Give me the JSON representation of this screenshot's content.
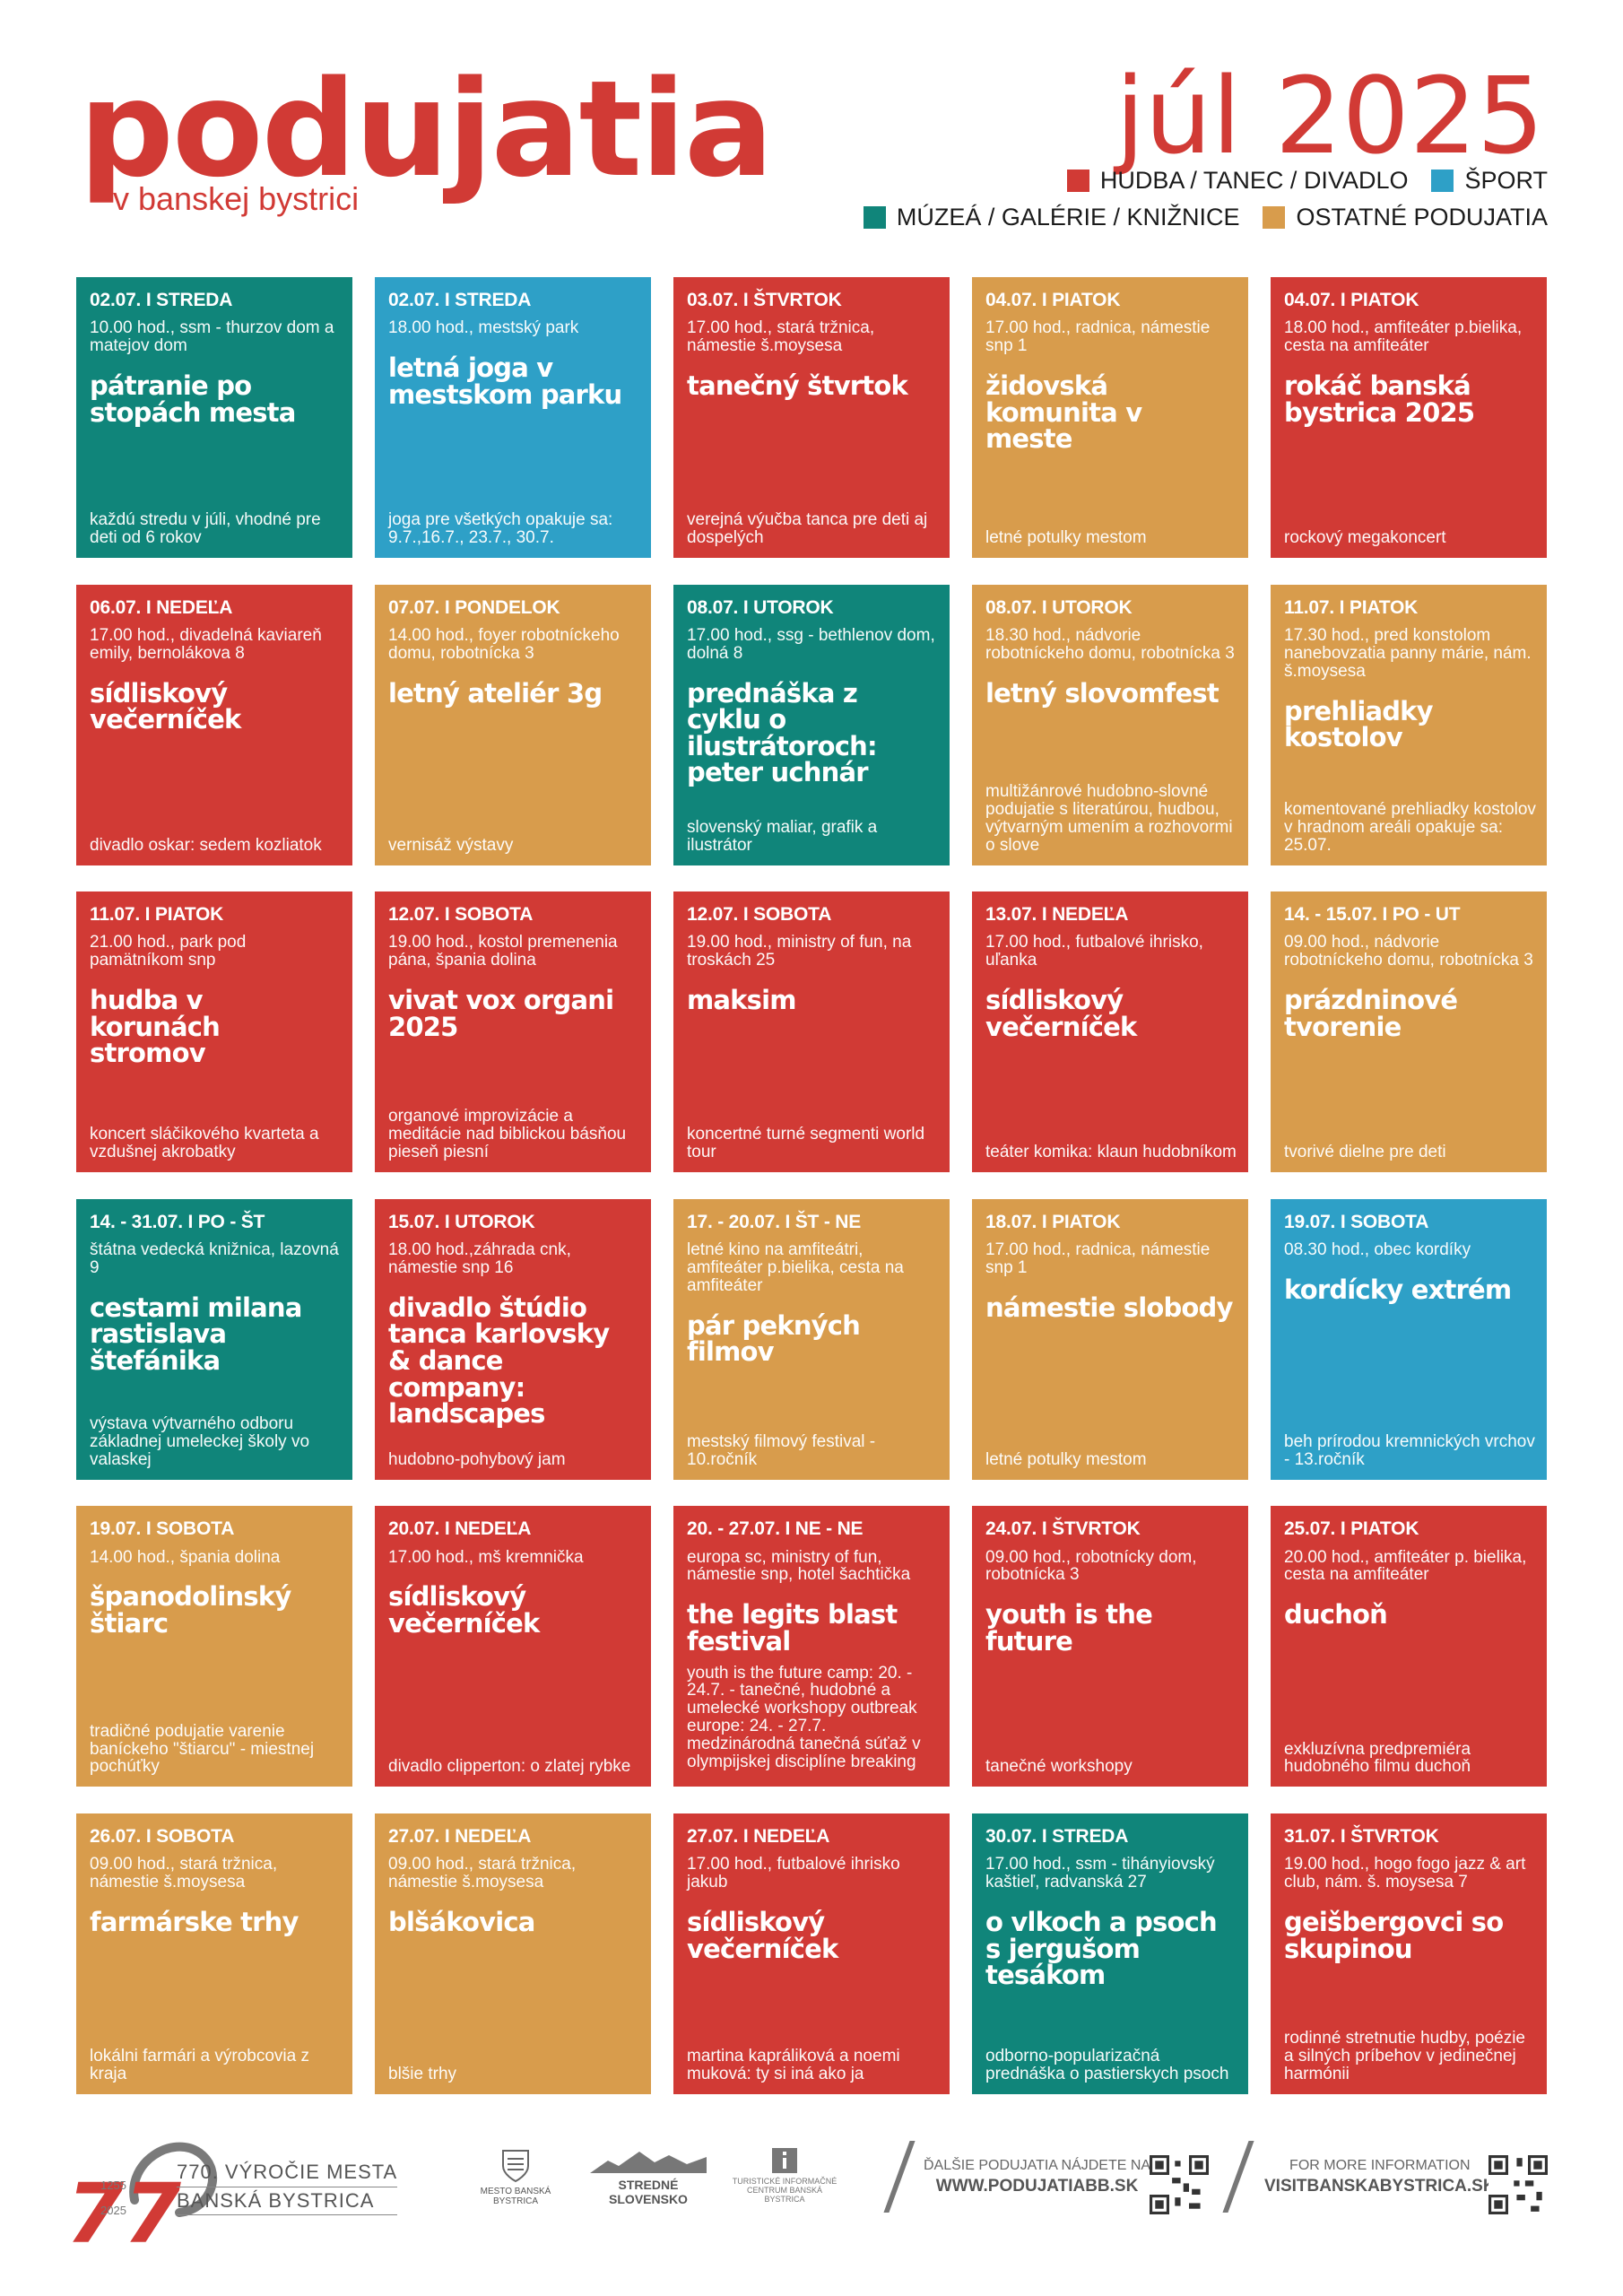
{
  "header": {
    "title": "podujatia",
    "subtitle": "v banskej bystrici",
    "month": "júl 2025",
    "legend": [
      {
        "label": "HUDBA / TANEC / DIVADLO",
        "color": "#d13a35"
      },
      {
        "label": "ŠPORT",
        "color": "#2ea0c7"
      },
      {
        "label": "MÚZEÁ / GALÉRIE / KNIŽNICE",
        "color": "#10857a"
      },
      {
        "label": "OSTATNÉ PODUJATIA",
        "color": "#d89c4c"
      }
    ]
  },
  "events": [
    {
      "category": "teal",
      "date": "02.07. I STREDA",
      "location": "10.00 hod., ssm - thurzov dom a matejov dom",
      "name": "pátranie po stopách mesta",
      "description": "každú stredu v júli, vhodné pre deti od 6 rokov"
    },
    {
      "category": "blue",
      "date": "02.07. I STREDA",
      "location": "18.00 hod., mestský park",
      "name": "letná joga v mestskom parku",
      "description": "joga pre všetkých opakuje sa: 9.7.,16.7., 23.7., 30.7."
    },
    {
      "category": "red",
      "date": "03.07. I ŠTVRTOK",
      "location": "17.00 hod., stará tržnica, námestie š.moysesa",
      "name": "tanečný štvrtok",
      "description": "verejná výučba tanca pre deti aj dospelých"
    },
    {
      "category": "orange",
      "date": "04.07. I PIATOK",
      "location": "17.00 hod., radnica, námestie snp 1",
      "name": "židovská komunita v meste",
      "description": "letné potulky mestom"
    },
    {
      "category": "red",
      "date": "04.07. I PIATOK",
      "location": "18.00 hod., amfiteáter p.bielika, cesta na amfiteáter",
      "name": "rokáč banská bystrica 2025",
      "description": "rockový megakoncert"
    },
    {
      "category": "red",
      "date": "06.07. I NEDEĽA",
      "location": "17.00 hod., divadelná kaviareň emily, bernolákova 8",
      "name": "sídliskový večerníček",
      "description": "divadlo oskar: sedem kozliatok"
    },
    {
      "category": "orange",
      "date": "07.07. I PONDELOK",
      "location": "14.00 hod., foyer robotníckeho domu, robotnícka 3",
      "name": "letný ateliér 3g",
      "description": "vernisáž výstavy"
    },
    {
      "category": "teal",
      "date": "08.07. I UTOROK",
      "location": "17.00 hod., ssg - bethlenov dom, dolná 8",
      "name": "prednáška z cyklu o ilustrátoroch: peter uchnár",
      "description": "slovenský maliar, grafik a ilustrátor"
    },
    {
      "category": "orange",
      "date": "08.07. I UTOROK",
      "location": "18.30 hod., nádvorie robotníckeho domu, robotnícka 3",
      "name": "letný slovomfest",
      "description": "multižánrové hudobno-slovné podujatie s literatúrou, hudbou, výtvarným umením a rozhovormi o slove"
    },
    {
      "category": "orange",
      "date": "11.07. I PIATOK",
      "location": "17.30 hod., pred konstolom nanebovzatia panny márie, nám. š.moysesa",
      "name": "prehliadky kostolov",
      "description": "komentované prehliadky kostolov v hradnom areáli opakuje sa: 25.07."
    },
    {
      "category": "red",
      "date": "11.07. I PIATOK",
      "location": "21.00 hod., park pod pamätníkom snp",
      "name": "hudba v korunách stromov",
      "description": "koncert sláčikového kvarteta a vzdušnej akrobatky"
    },
    {
      "category": "red",
      "date": "12.07. I SOBOTA",
      "location": "19.00 hod., kostol premenenia pána, špania dolina",
      "name": "vivat vox organi 2025",
      "description": "organové improvizácie a meditácie nad biblickou básňou pieseň piesní"
    },
    {
      "category": "red",
      "date": "12.07. I SOBOTA",
      "location": "19.00 hod., ministry of fun, na troskách 25",
      "name": "maksim",
      "description": "koncertné turné segmenti world tour"
    },
    {
      "category": "red",
      "date": "13.07. I NEDEĽA",
      "location": "17.00 hod., futbalové ihrisko, uľanka",
      "name": "sídliskový večerníček",
      "description": "teáter komika: klaun hudobníkom"
    },
    {
      "category": "orange",
      "date": "14. - 15.07. I PO - UT",
      "location": "09.00 hod., nádvorie robotníckeho domu, robotnícka 3",
      "name": "prázdninové tvorenie",
      "description": "tvorivé dielne pre deti"
    },
    {
      "category": "teal",
      "date": "14. - 31.07. I PO - ŠT",
      "location": "štátna vedecká knižnica, lazovná 9",
      "name": "cestami milana rastislava štefánika",
      "description": "výstava výtvarného odboru základnej umeleckej školy vo valaskej"
    },
    {
      "category": "red",
      "date": "15.07. I UTOROK",
      "location": "18.00 hod.,záhrada cnk, námestie snp 16",
      "name": "divadlo štúdio tanca karlovsky & dance company: landscapes",
      "description": "hudobno-pohybový jam"
    },
    {
      "category": "orange",
      "date": "17. - 20.07. I ŠT - NE",
      "location": "letné kino na amfiteátri, amfiteáter p.bielika, cesta na amfiteáter",
      "name": "pár pekných filmov",
      "description": "mestský filmový festival - 10.ročník"
    },
    {
      "category": "orange",
      "date": "18.07. I PIATOK",
      "location": "17.00 hod., radnica, námestie snp 1",
      "name": "námestie slobody",
      "description": "letné potulky mestom"
    },
    {
      "category": "blue",
      "date": "19.07. I SOBOTA",
      "location": "08.30 hod., obec kordíky",
      "name": "kordícky extrém",
      "description": "beh prírodou kremnických vrchov - 13.ročník"
    },
    {
      "category": "orange",
      "date": "19.07. I SOBOTA",
      "location": "14.00 hod., špania dolina",
      "name": "španodolinský štiarc",
      "description": "tradičné podujatie varenie baníckeho \"štiarcu\" - miestnej pochúťky"
    },
    {
      "category": "red",
      "date": "20.07. I NEDEĽA",
      "location": "17.00 hod., mš kremnička",
      "name": "sídliskový večerníček",
      "description": "divadlo clipperton: o zlatej rybke"
    },
    {
      "category": "red",
      "date": "20. - 27.07. I NE - NE",
      "location": "europa sc, ministry of fun, námestie snp, hotel šachtička",
      "name": "the legits blast festival",
      "description": "youth is the future camp: 20. - 24.7. - tanečné, hudobné a umelecké workshopy outbreak europe: 24. - 27.7. medzinárodná tanečná súťaž v olympijskej disciplíne breaking",
      "desc_top": true
    },
    {
      "category": "red",
      "date": "24.07. I ŠTVRTOK",
      "location": "09.00 hod., robotnícky dom, robotnícka 3",
      "name": "youth is the future",
      "description": "tanečné workshopy"
    },
    {
      "category": "red",
      "date": "25.07. I PIATOK",
      "location": "20.00 hod., amfiteáter p. bielika, cesta na amfiteáter",
      "name": "duchoň",
      "description": "exkluzívna predpremiéra hudobného filmu duchoň"
    },
    {
      "category": "orange",
      "date": "26.07. I SOBOTA",
      "location": "09.00 hod., stará tržnica, námestie š.moysesa",
      "name": "farmárske trhy",
      "description": "lokálni farmári a výrobcovia z kraja"
    },
    {
      "category": "orange",
      "date": "27.07. I NEDEĽA",
      "location": "09.00 hod., stará tržnica, námestie š.moysesa",
      "name": "blšákovica",
      "description": "blšie trhy"
    },
    {
      "category": "red",
      "date": "27.07. I NEDEĽA",
      "location": "17.00 hod., futbalové ihrisko jakub",
      "name": "sídliskový večerníček",
      "description": "martina kapráliková a noemi muková: ty si iná ako ja"
    },
    {
      "category": "teal",
      "date": "30.07. I STREDA",
      "location": "17.00 hod., ssm - tihányiovský kaštieľ, radvanská 27",
      "name": "o vlkoch a psoch s jergušom tesákom",
      "description": "odborno-popularizačná prednáška o pastierskych psoch"
    },
    {
      "category": "red",
      "date": "31.07. I ŠTVRTOK",
      "location": "19.00 hod., hogo fogo jazz & art club, nám. š. moysesa 7",
      "name": "geišbergovci so skupinou",
      "description": "rodinné stretnutie hudby, poézie a silných príbehov v jedinečnej harmónii"
    }
  ],
  "footer": {
    "anniversary_line1": "770. VÝROČIE MESTA",
    "anniversary_line2": "BANSKÁ BYSTRICA",
    "year_from": "1255",
    "year_to": "2025",
    "logo_mesto": "MESTO BANSKÁ BYSTRICA",
    "logo_stredne": "STREDNÉ SLOVENSKO",
    "logo_tic": "TURISTICKÉ INFORMAČNÉ CENTRUM BANSKÁ BYSTRICA",
    "more_events_label": "ĎALŠIE PODUJATIA NÁJDETE NA",
    "more_events_url": "WWW.PODUJATIABB.SK",
    "more_info_label": "FOR MORE INFORMATION",
    "more_info_url": "VISITBANSKABYSTRICA.SK"
  }
}
